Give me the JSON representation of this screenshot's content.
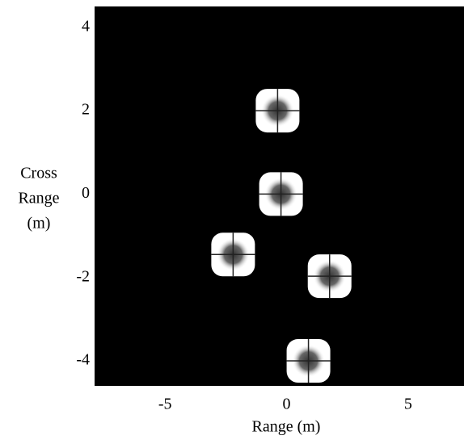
{
  "chart_data": {
    "type": "scatter",
    "xlabel": "Range (m)",
    "ylabel": [
      "Cross",
      "Range",
      "(m)"
    ],
    "x": [
      -0.37,
      -0.23,
      -2.2,
      1.77,
      0.9
    ],
    "values": [
      2.0,
      0,
      -1.45,
      -1.97,
      -4.0
    ],
    "xlim": [
      -7.9,
      7.3
    ],
    "ylim": [
      -4.6,
      4.5
    ],
    "xticks": [
      -5,
      0,
      5
    ],
    "yticks": [
      4,
      2,
      0,
      -2,
      -4
    ],
    "background": "#000000",
    "color": "#ffffff"
  }
}
